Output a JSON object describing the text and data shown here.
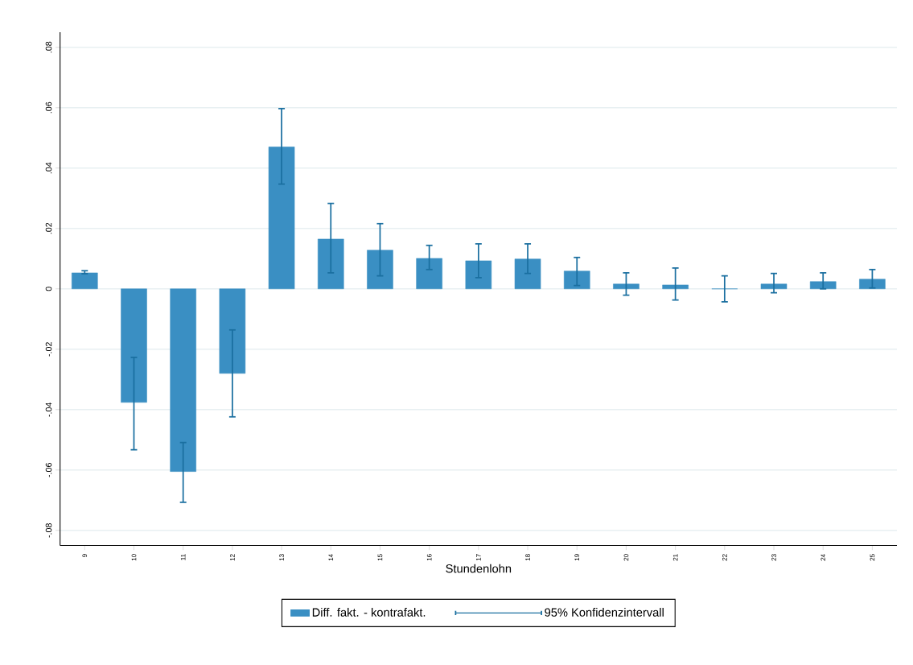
{
  "chart_data": {
    "type": "bar",
    "xlabel": "Stundenlohn",
    "categories": [
      "9",
      "10",
      "11",
      "12",
      "13",
      "14",
      "15",
      "16",
      "17",
      "18",
      "19",
      "20",
      "21",
      "22",
      "23",
      "24",
      "25"
    ],
    "series": [
      {
        "name": "Diff. fakt. - kontrafakt.",
        "color": "#3a8fc3",
        "values": [
          0.0053,
          -0.0376,
          -0.0605,
          -0.028,
          0.047,
          0.0165,
          0.0128,
          0.0101,
          0.0093,
          0.0099,
          0.0059,
          0.0016,
          0.0013,
          0.0,
          0.0016,
          0.0024,
          0.0032
        ],
        "errors": [
          [
            0.005,
            0.006
          ],
          [
            -0.0533,
            -0.0227
          ],
          [
            -0.0707,
            -0.0509
          ],
          [
            -0.0424,
            -0.0136
          ],
          [
            0.0347,
            0.0597
          ],
          [
            0.0053,
            0.0283
          ],
          [
            0.0043,
            0.0216
          ],
          [
            0.0064,
            0.0144
          ],
          [
            0.0037,
            0.0149
          ],
          [
            0.0051,
            0.0149
          ],
          [
            0.0011,
            0.0104
          ],
          [
            -0.0021,
            0.0053
          ],
          [
            -0.0037,
            0.0069
          ],
          [
            -0.0043,
            0.0043
          ],
          [
            -0.0013,
            0.0051
          ],
          [
            0.0,
            0.0053
          ],
          [
            0.0003,
            0.0064
          ]
        ]
      }
    ],
    "annotations": [
      "95% Konfidenzintervall"
    ],
    "ylim": [
      -0.085,
      0.085
    ],
    "yticks": [
      {
        "value": -0.08,
        "label": "-.08"
      },
      {
        "value": -0.06,
        "label": "-.06"
      },
      {
        "value": -0.04,
        "label": "-.04"
      },
      {
        "value": -0.02,
        "label": "-.02"
      },
      0,
      {
        "value": 0.02,
        "label": ".02"
      },
      {
        "value": 0.04,
        "label": ".04"
      },
      {
        "value": 0.06,
        "label": ".06"
      },
      {
        "value": 0.08,
        "label": ".08"
      }
    ],
    "grid": "y",
    "legend": "bottom"
  }
}
